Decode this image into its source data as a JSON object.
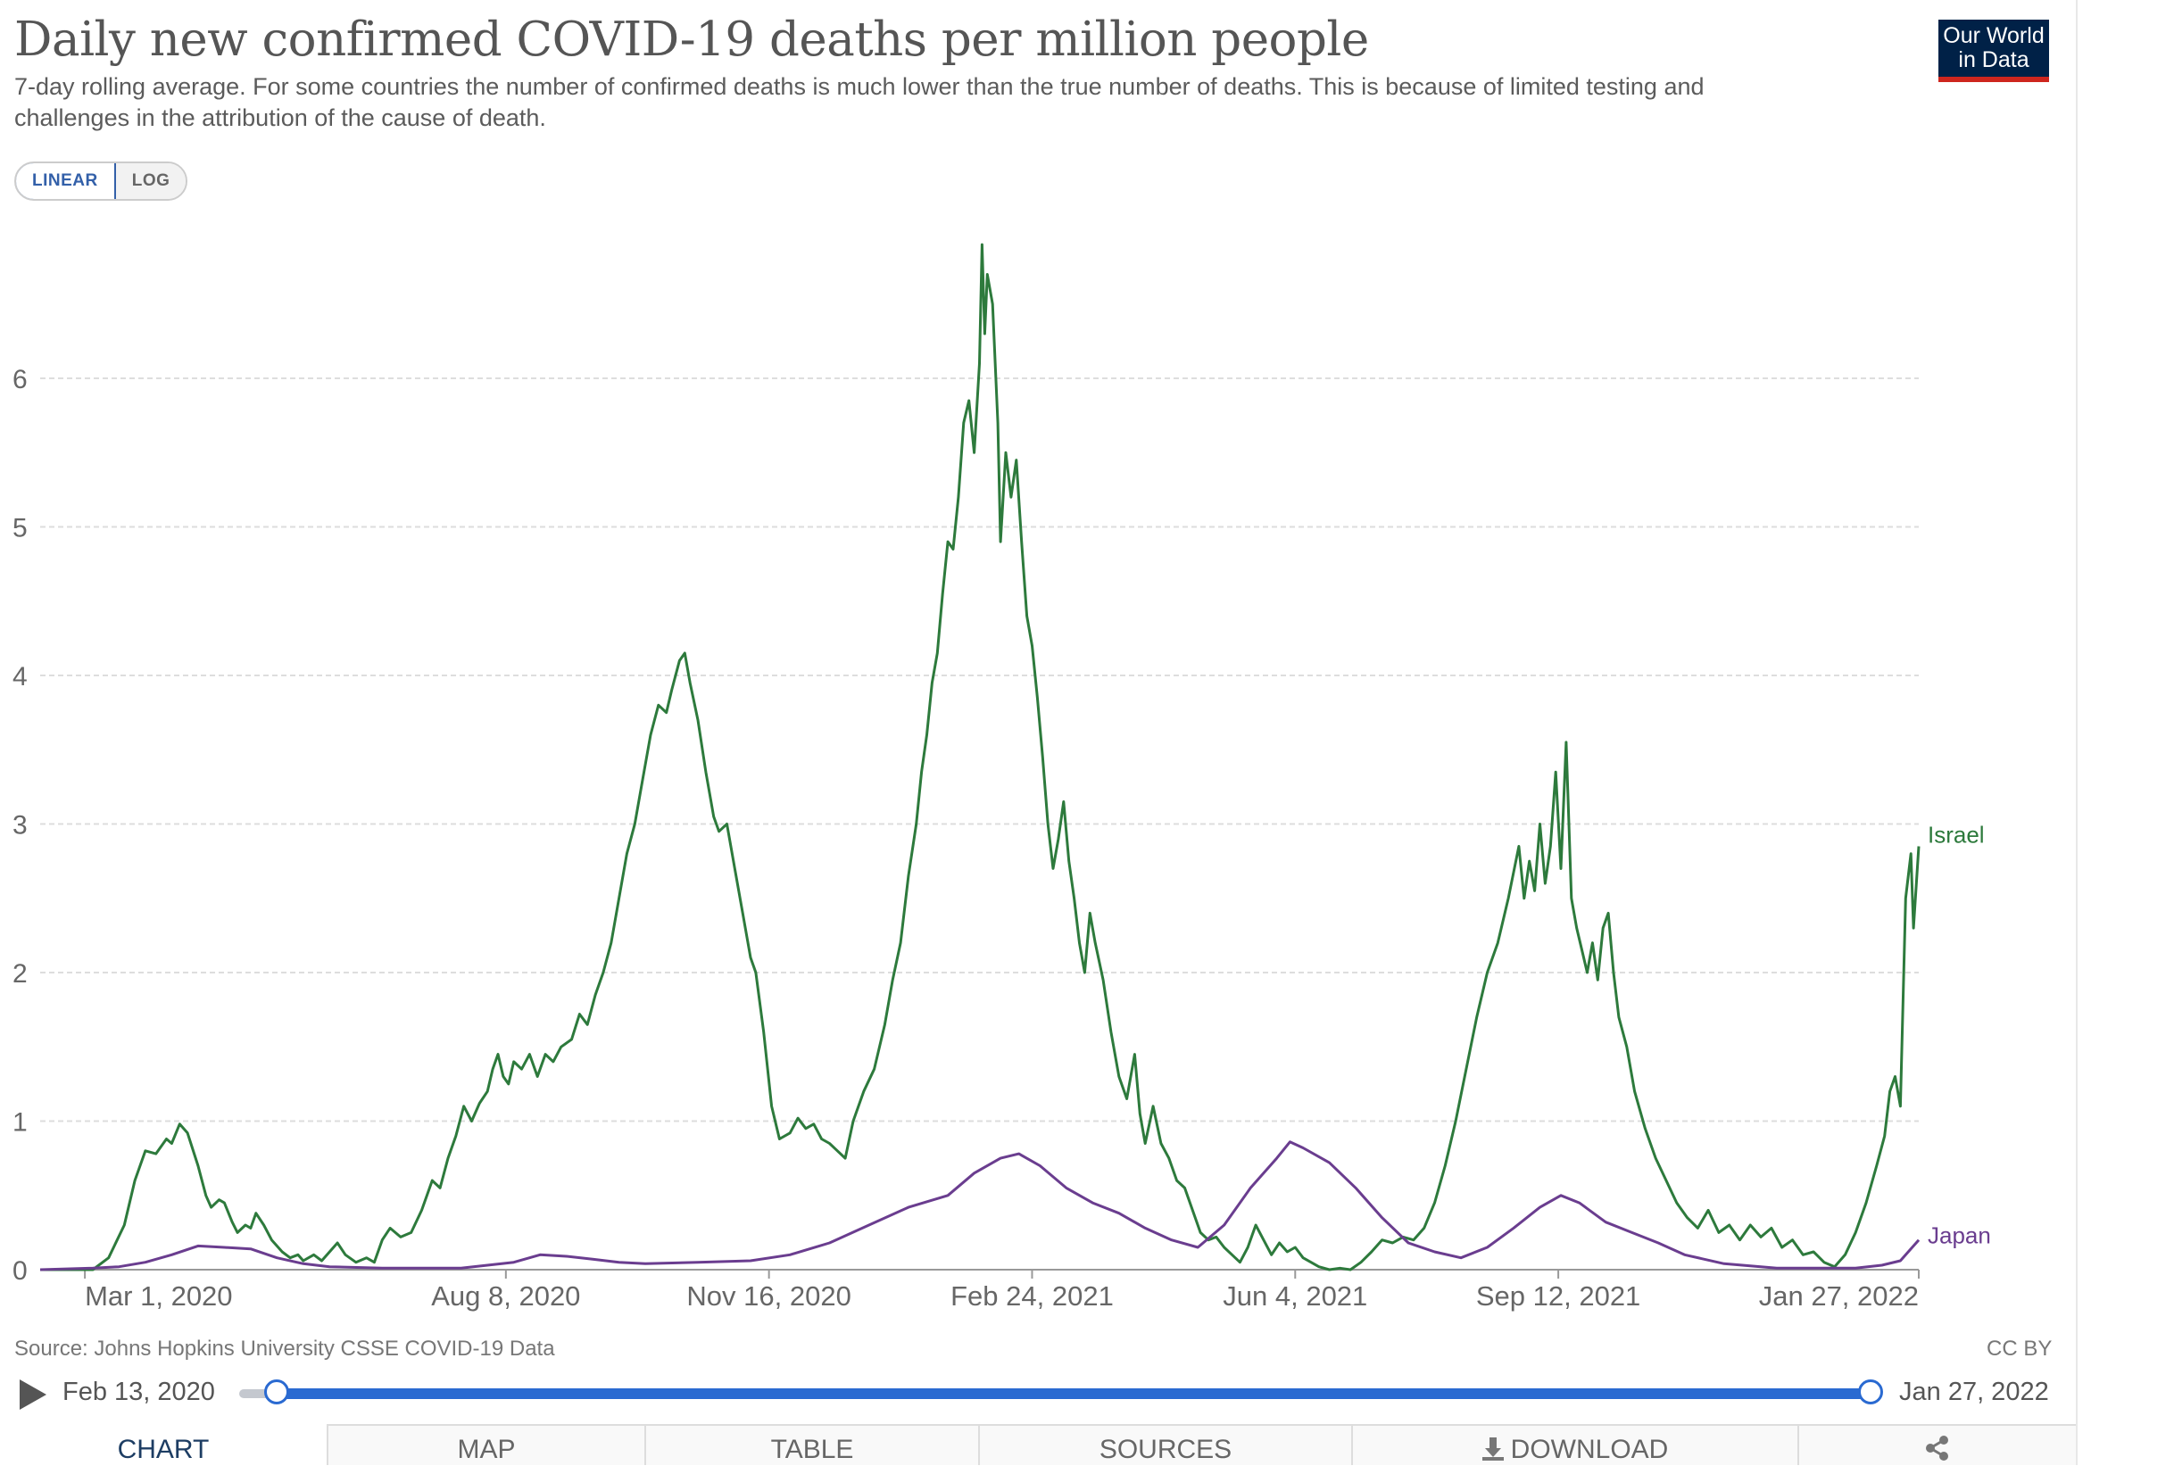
{
  "header": {
    "title": "Daily new confirmed COVID-19 deaths per million people",
    "subtitle": "7-day rolling average. For some countries the number of confirmed deaths is much lower than the true number of deaths. This is because of limited testing and challenges in the attribution of the cause of death.",
    "logo_line1": "Our World",
    "logo_line2": "in Data"
  },
  "scale": {
    "linear_label": "LINEAR",
    "log_label": "LOG",
    "selected": "LINEAR"
  },
  "footer": {
    "source": "Source: Johns Hopkins University CSSE COVID-19 Data",
    "license": "CC BY"
  },
  "timeline": {
    "start_label": "Feb 13, 2020",
    "end_label": "Jan 27, 2022"
  },
  "tabs": {
    "chart": "CHART",
    "map": "MAP",
    "table": "TABLE",
    "sources": "SOURCES",
    "download": "DOWNLOAD"
  },
  "colors": {
    "israel": "#2d7a3c",
    "japan": "#6a3d8f",
    "grid": "#dddddd",
    "axis": "#666666",
    "accent": "#2a6ad1"
  },
  "chart_data": {
    "type": "line",
    "title": "Daily new confirmed COVID-19 deaths per million people",
    "xlabel": "",
    "ylabel": "",
    "ylim": [
      0,
      7
    ],
    "x_range": [
      "2020-02-13",
      "2022-01-27"
    ],
    "yticks": [
      "0",
      "1",
      "2",
      "3",
      "4",
      "5",
      "6"
    ],
    "xticks": [
      {
        "label": "Mar 1, 2020",
        "day": 17
      },
      {
        "label": "Aug 8, 2020",
        "day": 177
      },
      {
        "label": "Nov 16, 2020",
        "day": 277
      },
      {
        "label": "Feb 24, 2021",
        "day": 377
      },
      {
        "label": "Jun 4, 2021",
        "day": 477
      },
      {
        "label": "Sep 12, 2021",
        "day": 577
      },
      {
        "label": "Jan 27, 2022",
        "day": 714
      }
    ],
    "series": [
      {
        "name": "Israel",
        "label": "Israel",
        "points": [
          [
            0,
            0
          ],
          [
            20,
            0
          ],
          [
            26,
            0.08
          ],
          [
            32,
            0.3
          ],
          [
            36,
            0.6
          ],
          [
            40,
            0.8
          ],
          [
            44,
            0.78
          ],
          [
            48,
            0.88
          ],
          [
            50,
            0.85
          ],
          [
            53,
            0.98
          ],
          [
            56,
            0.92
          ],
          [
            60,
            0.7
          ],
          [
            63,
            0.5
          ],
          [
            65,
            0.42
          ],
          [
            68,
            0.47
          ],
          [
            70,
            0.45
          ],
          [
            73,
            0.32
          ],
          [
            75,
            0.25
          ],
          [
            78,
            0.3
          ],
          [
            80,
            0.28
          ],
          [
            82,
            0.38
          ],
          [
            85,
            0.3
          ],
          [
            88,
            0.2
          ],
          [
            92,
            0.12
          ],
          [
            95,
            0.08
          ],
          [
            98,
            0.1
          ],
          [
            100,
            0.06
          ],
          [
            104,
            0.1
          ],
          [
            107,
            0.06
          ],
          [
            110,
            0.12
          ],
          [
            113,
            0.18
          ],
          [
            116,
            0.1
          ],
          [
            120,
            0.05
          ],
          [
            124,
            0.08
          ],
          [
            127,
            0.05
          ],
          [
            130,
            0.2
          ],
          [
            133,
            0.28
          ],
          [
            137,
            0.22
          ],
          [
            141,
            0.25
          ],
          [
            145,
            0.4
          ],
          [
            149,
            0.6
          ],
          [
            152,
            0.55
          ],
          [
            155,
            0.75
          ],
          [
            158,
            0.9
          ],
          [
            161,
            1.1
          ],
          [
            164,
            1.0
          ],
          [
            167,
            1.12
          ],
          [
            170,
            1.2
          ],
          [
            172,
            1.35
          ],
          [
            174,
            1.45
          ],
          [
            176,
            1.3
          ],
          [
            178,
            1.25
          ],
          [
            180,
            1.4
          ],
          [
            183,
            1.35
          ],
          [
            186,
            1.45
          ],
          [
            189,
            1.3
          ],
          [
            192,
            1.45
          ],
          [
            195,
            1.4
          ],
          [
            198,
            1.5
          ],
          [
            202,
            1.55
          ],
          [
            205,
            1.72
          ],
          [
            208,
            1.65
          ],
          [
            211,
            1.85
          ],
          [
            214,
            2.0
          ],
          [
            217,
            2.2
          ],
          [
            220,
            2.5
          ],
          [
            223,
            2.8
          ],
          [
            226,
            3.0
          ],
          [
            229,
            3.3
          ],
          [
            232,
            3.6
          ],
          [
            235,
            3.8
          ],
          [
            238,
            3.75
          ],
          [
            240,
            3.9
          ],
          [
            243,
            4.1
          ],
          [
            245,
            4.15
          ],
          [
            247,
            3.95
          ],
          [
            250,
            3.7
          ],
          [
            253,
            3.35
          ],
          [
            256,
            3.05
          ],
          [
            258,
            2.95
          ],
          [
            261,
            3.0
          ],
          [
            264,
            2.7
          ],
          [
            267,
            2.4
          ],
          [
            270,
            2.1
          ],
          [
            272,
            2.0
          ],
          [
            275,
            1.6
          ],
          [
            278,
            1.1
          ],
          [
            281,
            0.88
          ],
          [
            285,
            0.92
          ],
          [
            288,
            1.02
          ],
          [
            291,
            0.95
          ],
          [
            294,
            0.98
          ],
          [
            297,
            0.88
          ],
          [
            300,
            0.85
          ],
          [
            303,
            0.8
          ],
          [
            306,
            0.75
          ],
          [
            309,
            1.0
          ],
          [
            313,
            1.2
          ],
          [
            317,
            1.35
          ],
          [
            321,
            1.65
          ],
          [
            324,
            1.95
          ],
          [
            327,
            2.2
          ],
          [
            330,
            2.65
          ],
          [
            333,
            3.0
          ],
          [
            335,
            3.35
          ],
          [
            337,
            3.6
          ],
          [
            339,
            3.95
          ],
          [
            341,
            4.15
          ],
          [
            343,
            4.55
          ],
          [
            345,
            4.9
          ],
          [
            347,
            4.85
          ],
          [
            349,
            5.2
          ],
          [
            351,
            5.7
          ],
          [
            353,
            5.85
          ],
          [
            355,
            5.5
          ],
          [
            357,
            6.1
          ],
          [
            358,
            6.9
          ],
          [
            359,
            6.3
          ],
          [
            360,
            6.7
          ],
          [
            362,
            6.5
          ],
          [
            364,
            5.7
          ],
          [
            365,
            4.9
          ],
          [
            367,
            5.5
          ],
          [
            369,
            5.2
          ],
          [
            371,
            5.45
          ],
          [
            373,
            4.9
          ],
          [
            375,
            4.4
          ],
          [
            377,
            4.2
          ],
          [
            379,
            3.85
          ],
          [
            381,
            3.45
          ],
          [
            383,
            3.0
          ],
          [
            385,
            2.7
          ],
          [
            387,
            2.9
          ],
          [
            389,
            3.15
          ],
          [
            391,
            2.75
          ],
          [
            393,
            2.5
          ],
          [
            395,
            2.2
          ],
          [
            397,
            2.0
          ],
          [
            399,
            2.4
          ],
          [
            401,
            2.2
          ],
          [
            404,
            1.95
          ],
          [
            407,
            1.6
          ],
          [
            410,
            1.3
          ],
          [
            413,
            1.15
          ],
          [
            416,
            1.45
          ],
          [
            418,
            1.05
          ],
          [
            420,
            0.85
          ],
          [
            423,
            1.1
          ],
          [
            426,
            0.85
          ],
          [
            429,
            0.75
          ],
          [
            432,
            0.6
          ],
          [
            435,
            0.55
          ],
          [
            438,
            0.4
          ],
          [
            441,
            0.25
          ],
          [
            444,
            0.2
          ],
          [
            447,
            0.22
          ],
          [
            450,
            0.15
          ],
          [
            453,
            0.1
          ],
          [
            456,
            0.05
          ],
          [
            459,
            0.15
          ],
          [
            462,
            0.3
          ],
          [
            465,
            0.2
          ],
          [
            468,
            0.1
          ],
          [
            471,
            0.18
          ],
          [
            474,
            0.12
          ],
          [
            477,
            0.15
          ],
          [
            480,
            0.08
          ],
          [
            483,
            0.05
          ],
          [
            486,
            0.02
          ],
          [
            490,
            0
          ],
          [
            494,
            0.01
          ],
          [
            498,
            0
          ],
          [
            502,
            0.05
          ],
          [
            506,
            0.12
          ],
          [
            510,
            0.2
          ],
          [
            514,
            0.18
          ],
          [
            518,
            0.22
          ],
          [
            522,
            0.2
          ],
          [
            526,
            0.28
          ],
          [
            530,
            0.45
          ],
          [
            534,
            0.7
          ],
          [
            538,
            1.0
          ],
          [
            542,
            1.35
          ],
          [
            546,
            1.7
          ],
          [
            550,
            2.0
          ],
          [
            554,
            2.2
          ],
          [
            558,
            2.5
          ],
          [
            562,
            2.85
          ],
          [
            564,
            2.5
          ],
          [
            566,
            2.75
          ],
          [
            568,
            2.55
          ],
          [
            570,
            3.0
          ],
          [
            572,
            2.6
          ],
          [
            574,
            2.85
          ],
          [
            576,
            3.35
          ],
          [
            578,
            2.7
          ],
          [
            580,
            3.55
          ],
          [
            582,
            2.5
          ],
          [
            584,
            2.3
          ],
          [
            586,
            2.15
          ],
          [
            588,
            2.0
          ],
          [
            590,
            2.2
          ],
          [
            592,
            1.95
          ],
          [
            594,
            2.3
          ],
          [
            596,
            2.4
          ],
          [
            598,
            2.0
          ],
          [
            600,
            1.7
          ],
          [
            603,
            1.5
          ],
          [
            606,
            1.2
          ],
          [
            610,
            0.95
          ],
          [
            614,
            0.75
          ],
          [
            618,
            0.6
          ],
          [
            622,
            0.45
          ],
          [
            626,
            0.35
          ],
          [
            630,
            0.28
          ],
          [
            634,
            0.4
          ],
          [
            638,
            0.25
          ],
          [
            642,
            0.3
          ],
          [
            646,
            0.2
          ],
          [
            650,
            0.3
          ],
          [
            654,
            0.22
          ],
          [
            658,
            0.28
          ],
          [
            662,
            0.15
          ],
          [
            666,
            0.2
          ],
          [
            670,
            0.1
          ],
          [
            674,
            0.12
          ],
          [
            678,
            0.05
          ],
          [
            682,
            0.02
          ],
          [
            686,
            0.1
          ],
          [
            690,
            0.25
          ],
          [
            694,
            0.45
          ],
          [
            698,
            0.7
          ],
          [
            701,
            0.9
          ],
          [
            703,
            1.2
          ],
          [
            705,
            1.3
          ],
          [
            707,
            1.1
          ],
          [
            709,
            2.5
          ],
          [
            711,
            2.8
          ],
          [
            712,
            2.3
          ],
          [
            714,
            2.85
          ]
        ]
      },
      {
        "name": "Japan",
        "label": "Japan",
        "points": [
          [
            0,
            0
          ],
          [
            20,
            0.01
          ],
          [
            30,
            0.02
          ],
          [
            40,
            0.05
          ],
          [
            50,
            0.1
          ],
          [
            60,
            0.16
          ],
          [
            70,
            0.15
          ],
          [
            80,
            0.14
          ],
          [
            90,
            0.08
          ],
          [
            100,
            0.04
          ],
          [
            110,
            0.02
          ],
          [
            130,
            0.01
          ],
          [
            160,
            0.01
          ],
          [
            170,
            0.03
          ],
          [
            180,
            0.05
          ],
          [
            190,
            0.1
          ],
          [
            200,
            0.09
          ],
          [
            210,
            0.07
          ],
          [
            220,
            0.05
          ],
          [
            230,
            0.04
          ],
          [
            250,
            0.05
          ],
          [
            270,
            0.06
          ],
          [
            285,
            0.1
          ],
          [
            300,
            0.18
          ],
          [
            315,
            0.3
          ],
          [
            330,
            0.42
          ],
          [
            345,
            0.5
          ],
          [
            355,
            0.65
          ],
          [
            365,
            0.75
          ],
          [
            372,
            0.78
          ],
          [
            380,
            0.7
          ],
          [
            390,
            0.55
          ],
          [
            400,
            0.45
          ],
          [
            410,
            0.38
          ],
          [
            420,
            0.28
          ],
          [
            430,
            0.2
          ],
          [
            440,
            0.15
          ],
          [
            450,
            0.3
          ],
          [
            460,
            0.55
          ],
          [
            470,
            0.75
          ],
          [
            475,
            0.86
          ],
          [
            480,
            0.82
          ],
          [
            490,
            0.72
          ],
          [
            500,
            0.55
          ],
          [
            510,
            0.35
          ],
          [
            520,
            0.18
          ],
          [
            530,
            0.12
          ],
          [
            540,
            0.08
          ],
          [
            550,
            0.15
          ],
          [
            560,
            0.28
          ],
          [
            570,
            0.42
          ],
          [
            578,
            0.5
          ],
          [
            585,
            0.45
          ],
          [
            595,
            0.32
          ],
          [
            605,
            0.25
          ],
          [
            615,
            0.18
          ],
          [
            625,
            0.1
          ],
          [
            640,
            0.04
          ],
          [
            660,
            0.01
          ],
          [
            690,
            0.01
          ],
          [
            700,
            0.03
          ],
          [
            707,
            0.06
          ],
          [
            714,
            0.2
          ]
        ]
      }
    ]
  }
}
